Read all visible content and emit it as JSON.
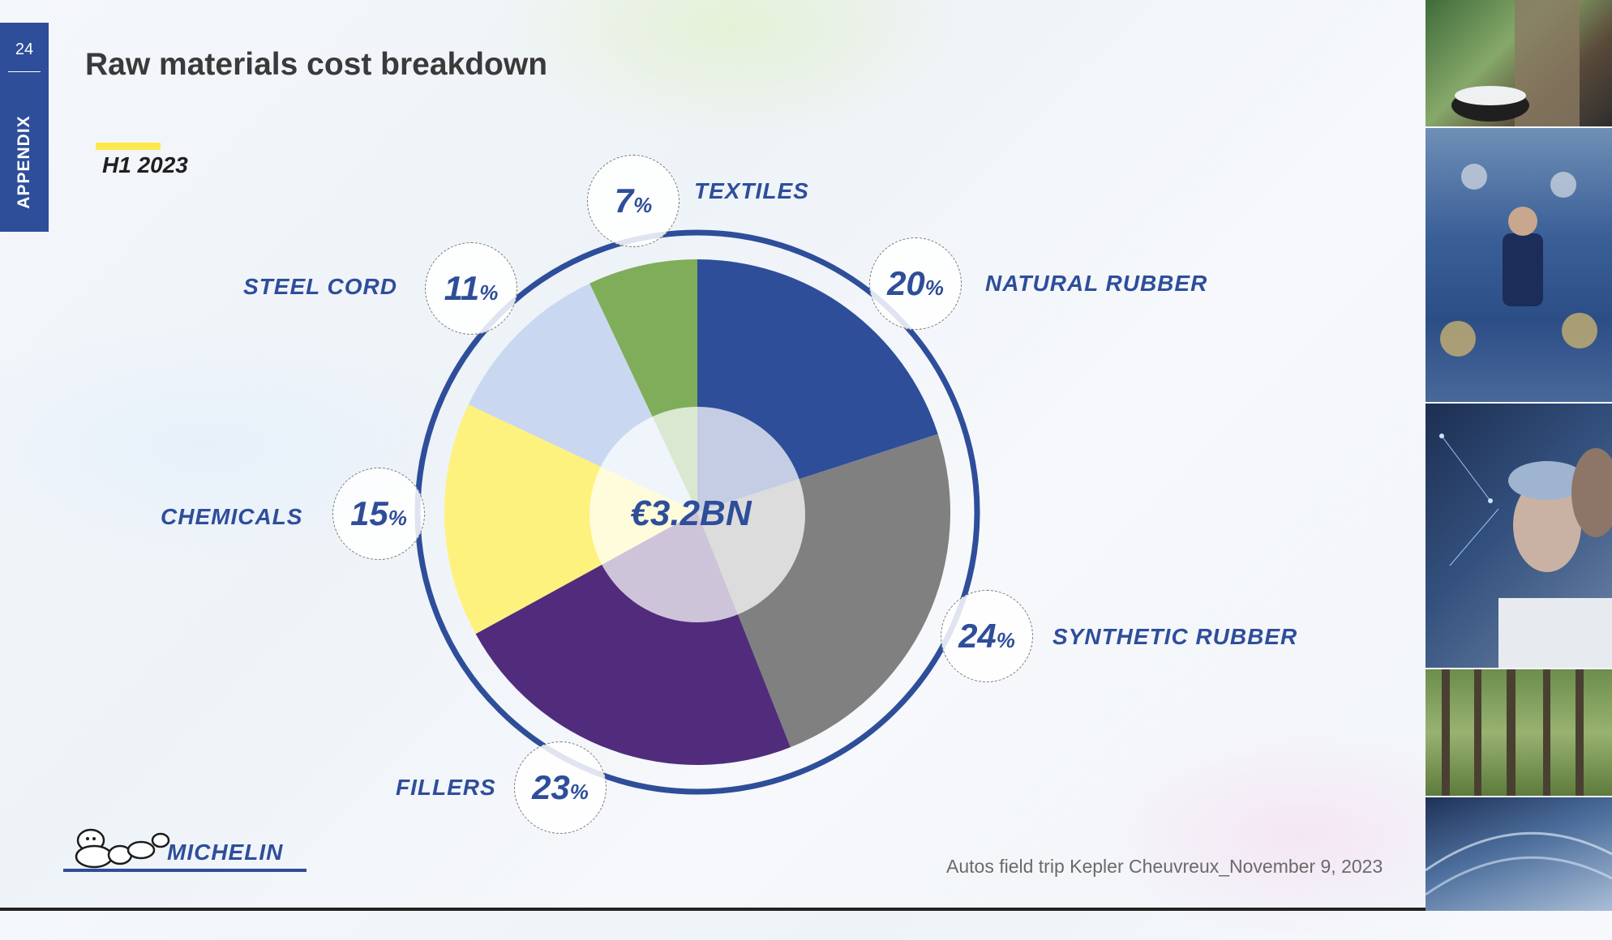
{
  "page": {
    "number": "24",
    "section": "APPENDIX",
    "title": "Raw materials cost breakdown",
    "period": "H1 2023",
    "footer": "Autos field trip Kepler Cheuvreux_November 9, 2023",
    "logo_text": "MICHELIN"
  },
  "chart_data": {
    "type": "pie",
    "title": "Raw materials cost breakdown",
    "subtitle": "H1 2023",
    "center_label": "€3.2BN",
    "unit": "%",
    "slices": [
      {
        "label": "NATURAL RUBBER",
        "value": 20,
        "color": "#2e4e9a"
      },
      {
        "label": "SYNTHETIC RUBBER",
        "value": 24,
        "color": "#808080"
      },
      {
        "label": "FILLERS",
        "value": 23,
        "color": "#512c7c"
      },
      {
        "label": "CHEMICALS",
        "value": 15,
        "color": "#fdf27d"
      },
      {
        "label": "STEEL CORD",
        "value": 11,
        "color": "#c9d8f0"
      },
      {
        "label": "TEXTILES",
        "value": 7,
        "color": "#7fad5a"
      }
    ]
  }
}
